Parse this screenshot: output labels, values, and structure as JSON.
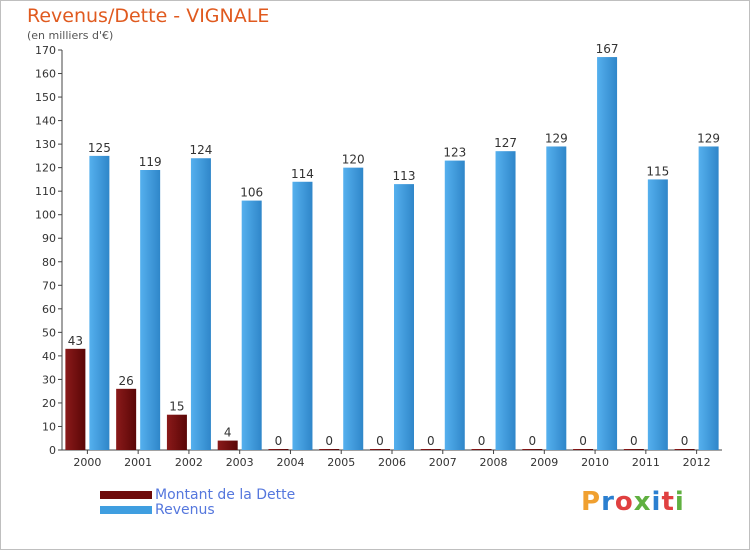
{
  "chart_data": {
    "type": "bar",
    "title": "Revenus/Dette - VIGNALE",
    "subtitle": "(en milliers d'€)",
    "categories": [
      "2000",
      "2001",
      "2002",
      "2003",
      "2004",
      "2005",
      "2006",
      "2007",
      "2008",
      "2009",
      "2010",
      "2011",
      "2012"
    ],
    "series": [
      {
        "name": "Montant de la Dette",
        "color": "#6e0a0a",
        "values": [
          43,
          26,
          15,
          4,
          0,
          0,
          0,
          0,
          0,
          0,
          0,
          0,
          0
        ]
      },
      {
        "name": "Revenus",
        "color": "#3f9ee0",
        "values": [
          125,
          119,
          124,
          106,
          114,
          120,
          113,
          123,
          127,
          129,
          167,
          115,
          129
        ]
      }
    ],
    "ylim": [
      0,
      170
    ],
    "ytick_step": 10,
    "grid": false,
    "legend_position": "bottom-left"
  },
  "logo": {
    "text": "Proxiti",
    "letter_colors": [
      "#f0a030",
      "#2b7fd0",
      "#e04040",
      "#60b040",
      "#2b7fd0",
      "#e04040",
      "#60b040"
    ]
  }
}
